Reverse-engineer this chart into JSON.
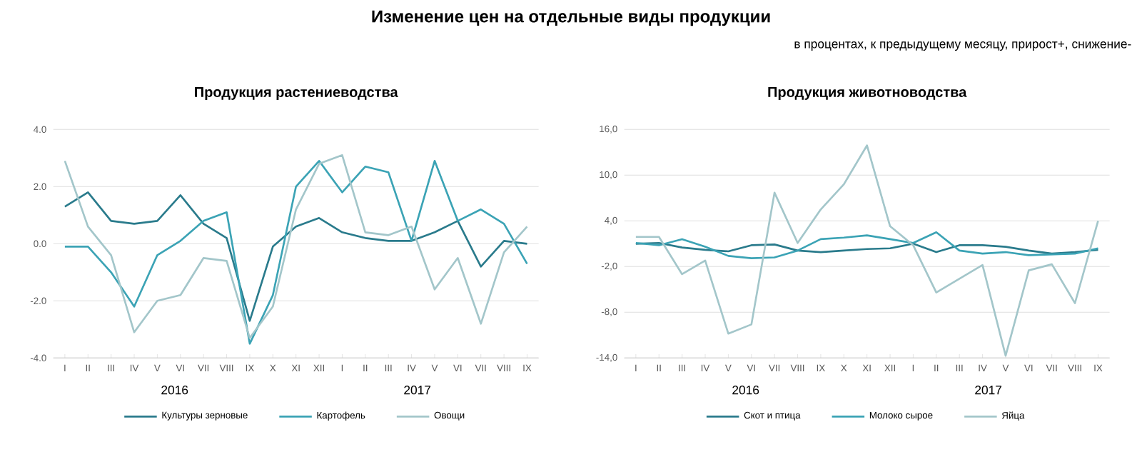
{
  "chart_data": [
    {
      "type": "line",
      "title": "Продукция растениеводства",
      "annotations": [
        "Изменение цен на отдельные виды продукции",
        "в процентах, к предыдущему месяцу, прирост+, снижение-",
        "2016",
        "2017"
      ],
      "categories": [
        "I",
        "II",
        "III",
        "IV",
        "V",
        "VI",
        "VII",
        "VIII",
        "IX",
        "X",
        "XI",
        "XII",
        "I",
        "II",
        "III",
        "IV",
        "V",
        "VI",
        "VII",
        "VIII",
        "IX"
      ],
      "ylim": [
        -4,
        4
      ],
      "yticks": [
        {
          "value": -4,
          "label": "-4.0"
        },
        {
          "value": -2,
          "label": "-2.0"
        },
        {
          "value": 0,
          "label": "0.0"
        },
        {
          "value": 2,
          "label": "2.0"
        },
        {
          "value": 4,
          "label": "4.0"
        }
      ],
      "grid": "y",
      "legend": "bottom",
      "marker": "none",
      "series": [
        {
          "name": "Культуры зерновые",
          "color": "#2a7b8c",
          "values": [
            1.3,
            1.8,
            0.8,
            0.7,
            0.8,
            1.7,
            0.7,
            0.2,
            -2.7,
            -0.1,
            0.6,
            0.9,
            0.4,
            0.2,
            0.1,
            0.1,
            0.4,
            0.8,
            -0.8,
            0.1,
            0.0
          ]
        },
        {
          "name": "Картофель",
          "color": "#3ba3b5",
          "values": [
            -0.1,
            -0.1,
            -1.0,
            -2.2,
            -0.4,
            0.1,
            0.8,
            1.1,
            -3.5,
            -1.8,
            2.0,
            2.9,
            1.8,
            2.7,
            2.5,
            0.1,
            2.9,
            0.8,
            1.2,
            0.7,
            -0.7
          ]
        },
        {
          "name": "Овощи",
          "color": "#a3c6ca",
          "values": [
            2.9,
            0.6,
            -0.4,
            -3.1,
            -2.0,
            -1.8,
            -0.5,
            -0.6,
            -3.3,
            -2.2,
            1.2,
            2.8,
            3.1,
            0.4,
            0.3,
            0.6,
            -1.6,
            -0.5,
            -2.8,
            -0.3,
            0.6
          ]
        }
      ]
    },
    {
      "type": "line",
      "title": "Продукция животноводства",
      "annotations": [
        "2016",
        "2017"
      ],
      "categories": [
        "I",
        "II",
        "III",
        "IV",
        "V",
        "VI",
        "VII",
        "VIII",
        "IX",
        "X",
        "XI",
        "XII",
        "I",
        "II",
        "III",
        "IV",
        "V",
        "VI",
        "VII",
        "VIII",
        "IX"
      ],
      "ylim": [
        -14,
        16
      ],
      "yticks": [
        {
          "value": -14,
          "label": "-14,0"
        },
        {
          "value": -8,
          "label": "-8,0"
        },
        {
          "value": -2,
          "label": "-2,0"
        },
        {
          "value": 4,
          "label": "4,0"
        },
        {
          "value": 10,
          "label": "10,0"
        },
        {
          "value": 16,
          "label": "16,0"
        }
      ],
      "grid": "y",
      "legend": "bottom",
      "marker": "none",
      "series": [
        {
          "name": "Скот и птица",
          "color": "#2a7b8c",
          "values": [
            1.0,
            1.1,
            0.5,
            0.2,
            0.0,
            0.8,
            0.9,
            0.1,
            -0.1,
            0.1,
            0.3,
            0.4,
            1.0,
            -0.1,
            0.8,
            0.8,
            0.6,
            0.1,
            -0.3,
            -0.1,
            0.2
          ]
        },
        {
          "name": "Молоко сырое",
          "color": "#3ba3b5",
          "values": [
            1.1,
            0.8,
            1.6,
            0.6,
            -0.6,
            -0.9,
            -0.8,
            0.1,
            1.6,
            1.8,
            2.1,
            1.6,
            1.1,
            2.5,
            0.1,
            -0.3,
            -0.1,
            -0.5,
            -0.4,
            -0.3,
            0.4
          ]
        },
        {
          "name": "Яйца",
          "color": "#a3c6ca",
          "values": [
            1.9,
            1.9,
            -3.0,
            -1.2,
            -10.8,
            -9.6,
            7.7,
            1.1,
            5.5,
            8.8,
            13.9,
            3.3,
            0.8,
            -5.4,
            -3.6,
            -1.8,
            -13.7,
            -2.5,
            -1.7,
            -6.8,
            4.0
          ]
        }
      ]
    }
  ]
}
